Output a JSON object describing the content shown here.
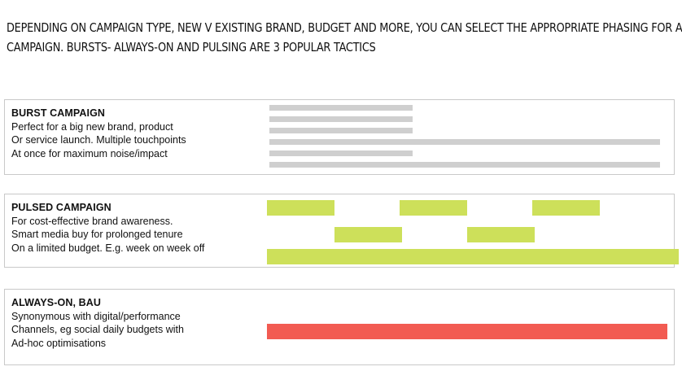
{
  "headline": {
    "line1": "Depending on campaign type, new v existing brand, budget and more, you can select the appropriate phasing for a",
    "line2": "campaign. Bursts- Always-on and pulsing are 3 popular tactics"
  },
  "panels": [
    {
      "title": "BURST CAMPAIGN",
      "lines": [
        "Perfect for a big new brand, product",
        "Or service launch. Multiple touchpoints",
        "At once for maximum noise/impact"
      ]
    },
    {
      "title": "PULSED CAMPAIGN",
      "lines": [
        "For cost-effective brand awareness.",
        "Smart media buy for prolonged tenure",
        "On a limited budget. E.g. week on week off"
      ]
    },
    {
      "title": "ALWAYS-ON, BAU",
      "lines": [
        "Synonymous with digital/performance",
        "Channels, eg social daily budgets with",
        "Ad-hoc optimisations"
      ]
    }
  ],
  "colors": {
    "burst": "#cfcfcf",
    "pulsed": "#cde05a",
    "always_on": "#f25b52",
    "border": "#c9c9c9"
  }
}
